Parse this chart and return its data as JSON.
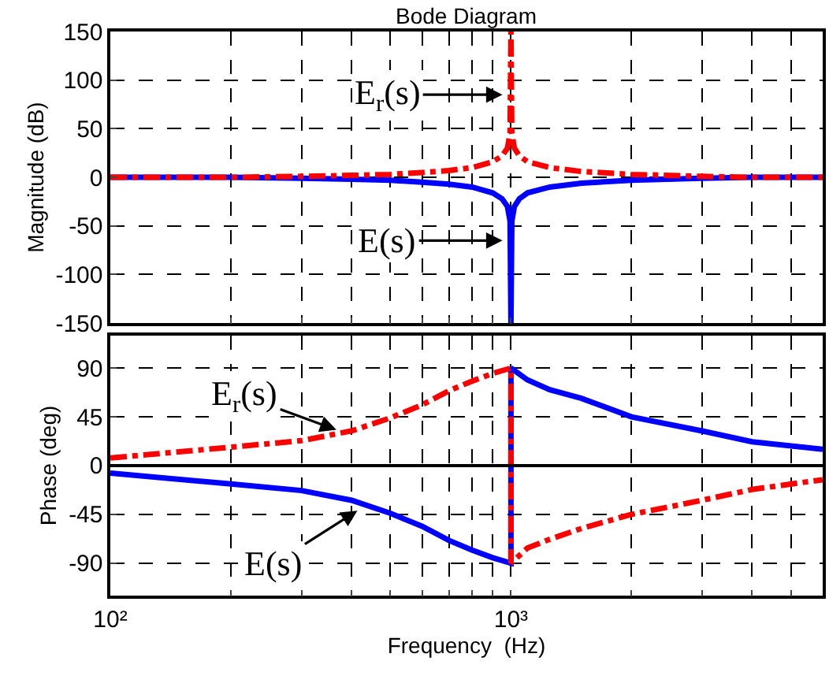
{
  "chart_data": [
    {
      "type": "line",
      "title": "Bode Diagram",
      "ylabel": "Magnitude (dB)",
      "log": "x",
      "grid": true,
      "tick_labels": "y",
      "xlim": [
        100,
        6000
      ],
      "xticks": [
        {
          "value": 100,
          "label": null
        },
        {
          "value": 200,
          "label": null
        },
        {
          "value": 300,
          "label": null
        },
        {
          "value": 400,
          "label": null
        },
        {
          "value": 500,
          "label": null
        },
        {
          "value": 600,
          "label": null
        },
        {
          "value": 700,
          "label": null
        },
        {
          "value": 800,
          "label": null
        },
        {
          "value": 900,
          "label": null
        },
        {
          "value": 1000,
          "label": null
        },
        {
          "value": 2000,
          "label": null
        },
        {
          "value": 3000,
          "label": null
        },
        {
          "value": 4000,
          "label": null
        },
        {
          "value": 5000,
          "label": null
        }
      ],
      "ylim": [
        -150,
        150
      ],
      "yticks": [
        -150,
        -100,
        -50,
        0,
        50,
        100,
        150
      ],
      "annotations": [
        {
          "text": "E$_{r}$(s)",
          "x": 970,
          "y": 85
        },
        {
          "text": "E(s)",
          "x": 970,
          "y": -65
        }
      ],
      "series": [
        {
          "color": "#0000ff",
          "line_style": "solid",
          "x": [
            100,
            200,
            300,
            400,
            500,
            600,
            700,
            800,
            900,
            950,
            980,
            995,
            1000,
            1005,
            1020,
            1050,
            1100,
            1250,
            1500,
            2000,
            3000,
            4000,
            6000
          ],
          "values": [
            0,
            0,
            -1,
            -2,
            -3,
            -5,
            -7,
            -10,
            -16,
            -22,
            -30,
            -45,
            -150,
            -45,
            -30,
            -22,
            -16,
            -10,
            -6,
            -3,
            -1,
            0,
            0
          ]
        },
        {
          "color": "#ff0000",
          "line_style": "dashed",
          "x": [
            100,
            200,
            300,
            400,
            500,
            600,
            700,
            800,
            900,
            950,
            980,
            995,
            1000,
            1005,
            1020,
            1050,
            1100,
            1250,
            1500,
            2000,
            3000,
            4000,
            6000
          ],
          "values": [
            0,
            0,
            1,
            2,
            3,
            5,
            7,
            10,
            16,
            22,
            30,
            45,
            150,
            45,
            30,
            22,
            16,
            10,
            6,
            3,
            1,
            0,
            0
          ]
        }
      ]
    },
    {
      "type": "line",
      "xlabel": "Frequency  (Hz)",
      "ylabel": "Phase (deg)",
      "log": "x",
      "grid": true,
      "xlim": [
        100,
        6000
      ],
      "xticks": [
        {
          "value": 100,
          "label": "10²"
        },
        {
          "value": 200,
          "label": null
        },
        {
          "value": 300,
          "label": null
        },
        {
          "value": 400,
          "label": null
        },
        {
          "value": 500,
          "label": null
        },
        {
          "value": 600,
          "label": null
        },
        {
          "value": 700,
          "label": null
        },
        {
          "value": 800,
          "label": null
        },
        {
          "value": 900,
          "label": null
        },
        {
          "value": 1000,
          "label": "10³"
        },
        {
          "value": 2000,
          "label": null
        },
        {
          "value": 3000,
          "label": null
        },
        {
          "value": 4000,
          "label": null
        },
        {
          "value": 5000,
          "label": null
        }
      ],
      "ylim": [
        -120,
        120
      ],
      "yticks": [
        -90,
        -45,
        0,
        45,
        90
      ],
      "ref_lines": [
        {
          "axis": "y",
          "value": 0,
          "color": "#000000",
          "line_style": "solid"
        }
      ],
      "annotations": [
        {
          "text": "E$_{r}$(s)",
          "x": 373,
          "y": 32
        },
        {
          "text": "E(s)",
          "x": 420,
          "y": -40
        }
      ],
      "series": [
        {
          "color": "#0000ff",
          "line_style": "solid",
          "x": [
            100,
            200,
            300,
            400,
            500,
            600,
            700,
            800,
            900,
            1000,
            1000,
            1100,
            1250,
            1500,
            2000,
            3000,
            4000,
            6000
          ],
          "values": [
            -7,
            -17,
            -23,
            -32,
            -44,
            -56,
            -69,
            -78,
            -85,
            -90,
            90,
            79,
            70,
            62,
            45,
            32,
            22,
            15
          ]
        },
        {
          "color": "#ff0000",
          "line_style": "dashed",
          "x": [
            100,
            200,
            300,
            400,
            500,
            600,
            700,
            800,
            900,
            1000,
            1000,
            1100,
            1250,
            1500,
            2000,
            3000,
            4000,
            6000
          ],
          "values": [
            7,
            17,
            23,
            32,
            44,
            56,
            69,
            78,
            85,
            90,
            -90,
            -76,
            -68,
            -58,
            -45,
            -32,
            -22,
            -13
          ]
        }
      ]
    }
  ]
}
